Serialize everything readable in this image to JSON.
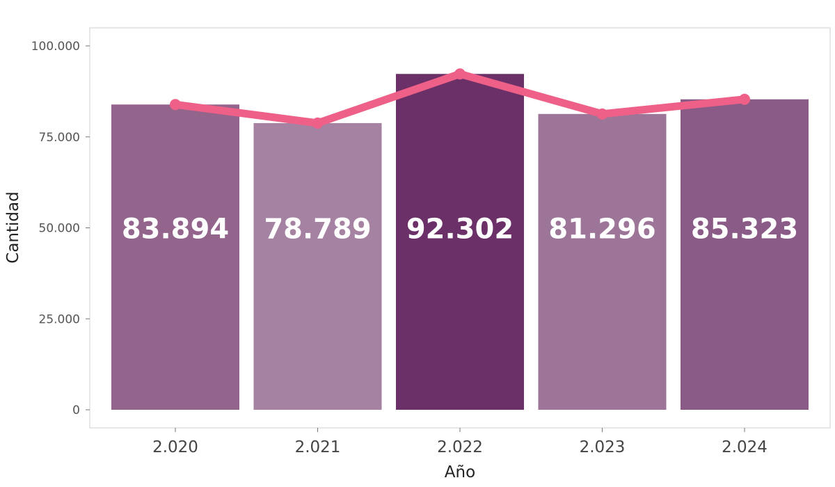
{
  "chart_data": {
    "type": "bar",
    "categories": [
      "2.020",
      "2.021",
      "2.022",
      "2.023",
      "2.024"
    ],
    "values": [
      83894,
      78789,
      92302,
      81296,
      85323
    ],
    "value_labels": [
      "83.894",
      "78.789",
      "92.302",
      "81.296",
      "85.323"
    ],
    "bar_colors": [
      "#93648c",
      "#a682a2",
      "#6b3068",
      "#9c7598",
      "#8a5b86"
    ],
    "line_overlay": {
      "values": [
        83894,
        78789,
        92302,
        81296,
        85323
      ],
      "color": "#ee6088"
    },
    "xlabel": "Año",
    "ylabel": "Cantidad",
    "ylim": [
      0,
      100000
    ],
    "yticks": [
      0,
      25000,
      50000,
      75000,
      100000
    ],
    "ytick_labels": [
      "0",
      "25.000",
      "50.000",
      "75.000",
      "100.000"
    ],
    "grid": false,
    "legend": "none"
  }
}
